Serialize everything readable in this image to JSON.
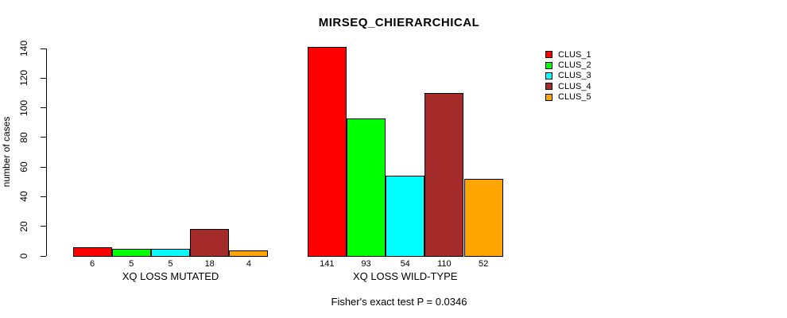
{
  "chart_data": {
    "type": "bar",
    "title": "MIRSEQ_CHIERARCHICAL",
    "ylabel": "number of cases",
    "xlabel": "",
    "ylim": [
      0,
      140
    ],
    "yticks": [
      0,
      20,
      40,
      60,
      80,
      100,
      120,
      140
    ],
    "grid": false,
    "legend_position": "right",
    "categories": [
      "XQ LOSS MUTATED",
      "XQ LOSS WILD-TYPE"
    ],
    "series": [
      {
        "name": "CLUS_1",
        "color": "#FF0000",
        "values": [
          6,
          141
        ]
      },
      {
        "name": "CLUS_2",
        "color": "#00FF00",
        "values": [
          5,
          93
        ]
      },
      {
        "name": "CLUS_3",
        "color": "#00FFFF",
        "values": [
          5,
          54
        ]
      },
      {
        "name": "CLUS_4",
        "color": "#A52A2A",
        "values": [
          18,
          110
        ]
      },
      {
        "name": "CLUS_5",
        "color": "#FFA500",
        "values": [
          4,
          52
        ]
      }
    ],
    "groups": [
      {
        "label": "XQ LOSS MUTATED",
        "values": [
          6,
          5,
          5,
          18,
          4
        ]
      },
      {
        "label": "XQ LOSS WILD-TYPE",
        "values": [
          141,
          93,
          54,
          110,
          52
        ]
      }
    ],
    "bar_value_labels_shown": true,
    "footer": "Fisher's exact test P = 0.0346"
  },
  "colors": {
    "background": "#FFFFFF",
    "axis": "#000000",
    "text": "#000000",
    "bar_border": "#000000"
  }
}
